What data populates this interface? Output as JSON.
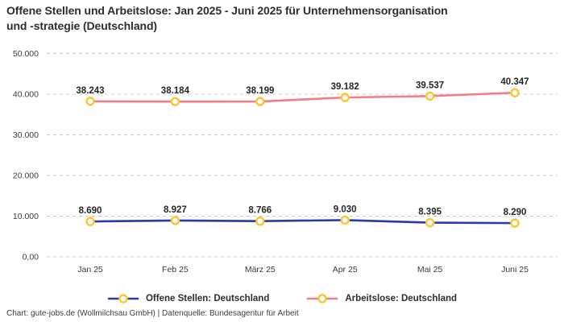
{
  "header": {
    "line1": "Offene Stellen und Arbeitslose: Jan 2025 - Juni 2025 für Unternehmensorganisation",
    "line2": "und -strategie (Deutschland)"
  },
  "footer": "Chart: gute-jobs.de (Wollmilchsau GmbH) | Datenquelle: Bundesagentur für Arbeit",
  "colors": {
    "series_blue": "#2a3aa5",
    "series_pink": "#f97987",
    "marker_ring": "#fdc331",
    "marker_fill": "#ffffff",
    "grid": "#cccccc",
    "axis_text": "#3a3a3a",
    "label_text": "#262626"
  },
  "legend": {
    "items": [
      {
        "label": "Offene Stellen: Deutschland",
        "color": "#2a3aa5"
      },
      {
        "label": "Arbeitslose: Deutschland",
        "color": "#f97987"
      }
    ]
  },
  "chart_data": {
    "type": "line",
    "title": "Offene Stellen und Arbeitslose: Jan 2025 - Juni 2025 für Unternehmensorganisation und -strategie (Deutschland)",
    "categories": [
      "Jan 25",
      "Feb 25",
      "März 25",
      "Apr 25",
      "Mai 25",
      "Juni 25"
    ],
    "series": [
      {
        "name": "Offene Stellen: Deutschland",
        "color": "#2a3aa5",
        "values": [
          8690,
          8927,
          8766,
          9030,
          8395,
          8290
        ],
        "labels": [
          "8.690",
          "8.927",
          "8.766",
          "9.030",
          "8.395",
          "8.290"
        ]
      },
      {
        "name": "Arbeitslose: Deutschland",
        "color": "#f97987",
        "values": [
          38243,
          38184,
          38199,
          39182,
          39537,
          40347
        ],
        "labels": [
          "38.243",
          "38.184",
          "38.199",
          "39.182",
          "39.537",
          "40.347"
        ]
      }
    ],
    "xlabel": "",
    "ylabel": "",
    "ylim": [
      0,
      50000
    ],
    "yticks": [
      0,
      10000,
      20000,
      30000,
      40000,
      50000
    ],
    "ytick_labels": [
      "0,00",
      "10.000",
      "20.000",
      "30.000",
      "40.000",
      "50.000"
    ],
    "grid": "horizontal-dashed",
    "legend_position": "bottom",
    "marker": "ring-yellow"
  }
}
